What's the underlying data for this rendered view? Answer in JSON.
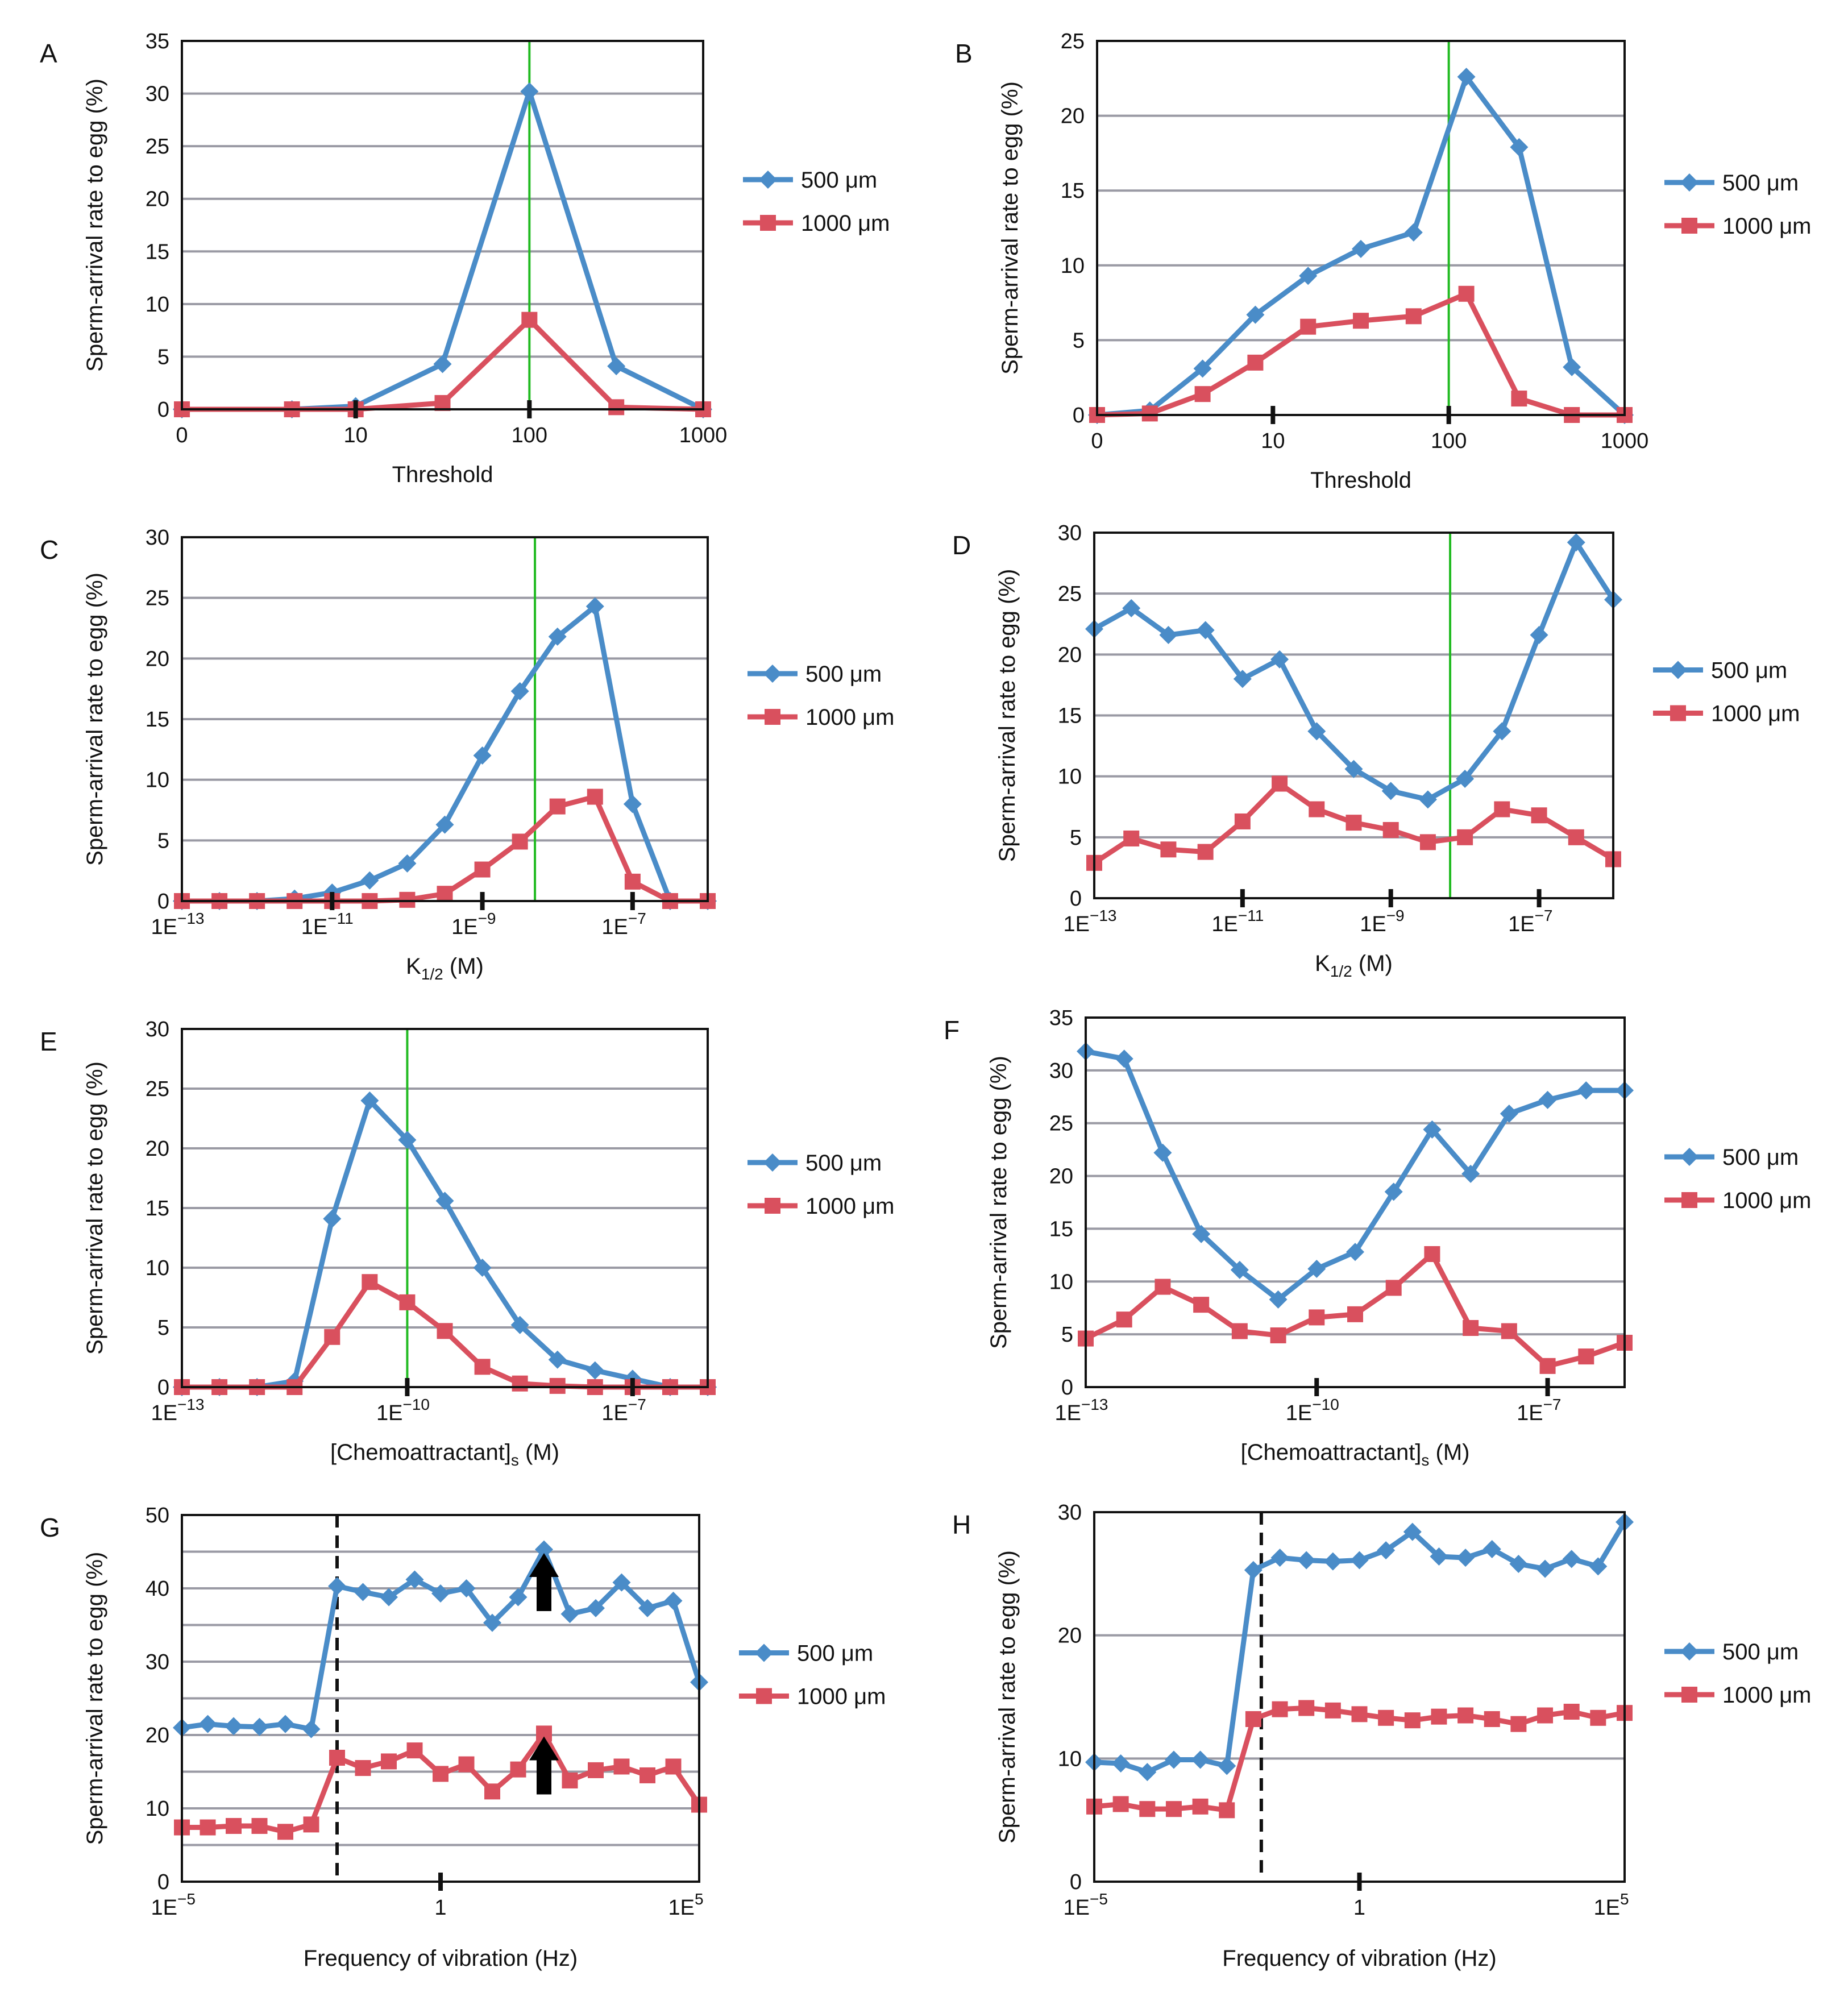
{
  "figure": {
    "ylabel": "Sperm-arrival rate to egg (%)"
  },
  "series_style": [
    {
      "name": "500 μm",
      "color": "#4A8CC8",
      "marker": "diamond"
    },
    {
      "name": "1000 μm",
      "color": "#D9505E",
      "marker": "square"
    }
  ],
  "chart_data": [
    {
      "panel": "A",
      "type": "line",
      "xlabel": "Threshold",
      "ylabel": "Sperm-arrival rate to egg (%)",
      "ylim": [
        0,
        35
      ],
      "yticks": [
        0,
        5,
        10,
        15,
        20,
        25,
        30,
        35
      ],
      "grid": true,
      "xrange": [
        0,
        9
      ],
      "xticks": [
        {
          "x": 0,
          "label": "0"
        },
        {
          "x": 3,
          "label": "10"
        },
        {
          "x": 6,
          "label": "100"
        },
        {
          "x": 9,
          "label": "1000"
        }
      ],
      "xtick_marks": [
        3,
        6
      ],
      "vline": {
        "x": 6,
        "color": "#22BB22",
        "style": "solid"
      },
      "x": [
        0,
        1.9,
        3,
        4.5,
        6,
        7.5,
        9
      ],
      "series": [
        {
          "name": "500 μm",
          "values": [
            0,
            0,
            0.3,
            4.3,
            30.2,
            4.1,
            0
          ]
        },
        {
          "name": "1000 μm",
          "values": [
            0,
            0,
            0,
            0.6,
            8.5,
            0.2,
            0
          ]
        }
      ],
      "legend": "right"
    },
    {
      "panel": "B",
      "type": "line",
      "xlabel": "Threshold",
      "ylabel": "Sperm-arrival rate to egg (%)",
      "ylim": [
        0,
        25
      ],
      "yticks": [
        0,
        5,
        10,
        15,
        20,
        25
      ],
      "grid": true,
      "xrange": [
        0,
        15
      ],
      "xticks": [
        {
          "x": 0,
          "label": "0"
        },
        {
          "x": 5,
          "label": "10"
        },
        {
          "x": 10,
          "label": "100"
        },
        {
          "x": 15,
          "label": "1000"
        }
      ],
      "xtick_marks": [
        5,
        10
      ],
      "vline": {
        "x": 10,
        "color": "#22BB22",
        "style": "solid"
      },
      "x": [
        0,
        1.5,
        3,
        4.5,
        6,
        7.5,
        9,
        10.5,
        12,
        13.5,
        15
      ],
      "series": [
        {
          "name": "500 μm",
          "values": [
            0,
            0.3,
            3.1,
            6.7,
            9.3,
            11.1,
            12.2,
            22.6,
            17.9,
            3.2,
            0
          ]
        },
        {
          "name": "1000 μm",
          "values": [
            0,
            0.1,
            1.4,
            3.5,
            5.9,
            6.3,
            6.6,
            8.1,
            1.1,
            0,
            0
          ]
        }
      ],
      "legend": "right"
    },
    {
      "panel": "C",
      "type": "line",
      "xlabel": "K1/2 (M)",
      "xlabel_main": "K",
      "xlabel_sub": "1/2",
      "xlabel_rest": " (M)",
      "ylabel": "Sperm-arrival rate to egg (%)",
      "ylim": [
        0,
        30
      ],
      "yticks": [
        0,
        5,
        10,
        15,
        20,
        25,
        30
      ],
      "grid": true,
      "xrange": [
        0,
        14
      ],
      "xticks": [
        {
          "x": 0,
          "label": "1E-13"
        },
        {
          "x": 4,
          "label": "1E-11"
        },
        {
          "x": 8,
          "label": "1E-9"
        },
        {
          "x": 12,
          "label": "1E-7"
        }
      ],
      "xtick_marks": [
        4,
        8,
        12
      ],
      "vline": {
        "x": 9.4,
        "color": "#22BB22",
        "style": "solid"
      },
      "x": [
        0,
        1,
        2,
        3,
        4,
        5,
        6,
        7,
        8,
        9,
        10,
        11,
        12,
        13,
        14
      ],
      "series": [
        {
          "name": "500 μm",
          "values": [
            0,
            0,
            0,
            0.2,
            0.7,
            1.7,
            3.1,
            6.3,
            12.0,
            17.3,
            21.8,
            24.3,
            8.0,
            0,
            0
          ]
        },
        {
          "name": "1000 μm",
          "values": [
            0,
            0,
            0,
            0,
            0,
            0,
            0.1,
            0.6,
            2.6,
            4.9,
            7.8,
            8.6,
            1.6,
            0,
            0
          ]
        }
      ],
      "legend": "right"
    },
    {
      "panel": "D",
      "type": "line",
      "xlabel": "K1/2 (M)",
      "xlabel_main": "K",
      "xlabel_sub": "1/2",
      "xlabel_rest": " (M)",
      "ylabel": "Sperm-arrival rate to egg (%)",
      "ylim": [
        0,
        30
      ],
      "yticks": [
        0,
        5,
        10,
        15,
        20,
        25,
        30
      ],
      "grid": true,
      "xrange": [
        0,
        14
      ],
      "xticks": [
        {
          "x": 0,
          "label": "1E-13"
        },
        {
          "x": 4,
          "label": "1E-11"
        },
        {
          "x": 8,
          "label": "1E-9"
        },
        {
          "x": 12,
          "label": "1E-7"
        }
      ],
      "xtick_marks": [
        4,
        8,
        12
      ],
      "vline": {
        "x": 9.6,
        "color": "#22BB22",
        "style": "solid"
      },
      "x": [
        0,
        1,
        2,
        3,
        4,
        5,
        6,
        7,
        8,
        9,
        10,
        11,
        12,
        13,
        14
      ],
      "series": [
        {
          "name": "500 μm",
          "values": [
            22.1,
            23.8,
            21.6,
            22.0,
            18.0,
            19.6,
            13.7,
            10.6,
            8.8,
            8.1,
            9.8,
            13.7,
            21.6,
            29.2,
            24.5
          ]
        },
        {
          "name": "1000 μm",
          "values": [
            2.9,
            4.9,
            4.0,
            3.8,
            6.3,
            9.4,
            7.3,
            6.2,
            5.6,
            4.6,
            5.0,
            7.3,
            6.8,
            5.0,
            3.2
          ]
        }
      ],
      "legend": "right"
    },
    {
      "panel": "E",
      "type": "line",
      "xlabel": "[Chemoattractant]s (M)",
      "xlabel_main": "[Chemoattractant]",
      "xlabel_sub": "s",
      "xlabel_rest": " (M)",
      "ylabel": "Sperm-arrival rate to egg (%)",
      "ylim": [
        0,
        30
      ],
      "yticks": [
        0,
        5,
        10,
        15,
        20,
        25,
        30
      ],
      "grid": true,
      "xrange": [
        0,
        14
      ],
      "xticks": [
        {
          "x": 0,
          "label": "1E-13"
        },
        {
          "x": 6,
          "label": "1E-10"
        },
        {
          "x": 12,
          "label": "1E-7"
        }
      ],
      "xtick_marks": [
        6,
        12
      ],
      "vline": {
        "x": 6,
        "color": "#22BB22",
        "style": "solid"
      },
      "x": [
        0,
        1,
        2,
        3,
        4,
        5,
        6,
        7,
        8,
        9,
        10,
        11,
        12,
        13,
        14
      ],
      "series": [
        {
          "name": "500 μm",
          "values": [
            0,
            0,
            0,
            0.5,
            14.1,
            24.0,
            20.7,
            15.6,
            10.0,
            5.2,
            2.3,
            1.4,
            0.7,
            0,
            0
          ]
        },
        {
          "name": "1000 μm",
          "values": [
            0,
            0,
            0,
            0,
            4.2,
            8.8,
            7.1,
            4.7,
            1.7,
            0.3,
            0.1,
            0,
            0,
            0,
            0
          ]
        }
      ],
      "legend": "right"
    },
    {
      "panel": "F",
      "type": "line",
      "xlabel": "[Chemoattractant]s (M)",
      "xlabel_main": "[Chemoattractant]",
      "xlabel_sub": "s",
      "xlabel_rest": " (M)",
      "ylabel": "Sperm-arrival rate to egg (%)",
      "ylim": [
        0,
        35
      ],
      "yticks": [
        0,
        5,
        10,
        15,
        20,
        25,
        30,
        35
      ],
      "grid": true,
      "xrange": [
        0,
        14
      ],
      "xticks": [
        {
          "x": 0,
          "label": "1E-13"
        },
        {
          "x": 6,
          "label": "1E-10"
        },
        {
          "x": 12,
          "label": "1E-7"
        }
      ],
      "xtick_marks": [
        6,
        12
      ],
      "vline": null,
      "x": [
        0,
        1,
        2,
        3,
        4,
        5,
        6,
        7,
        8,
        9,
        10,
        11,
        12,
        13,
        14
      ],
      "series": [
        {
          "name": "500 μm",
          "values": [
            31.8,
            31.1,
            22.2,
            14.5,
            11.1,
            8.3,
            11.2,
            12.8,
            18.5,
            24.4,
            20.2,
            25.9,
            27.2,
            28.1,
            28.1
          ]
        },
        {
          "name": "1000 μm",
          "values": [
            4.6,
            6.4,
            9.5,
            7.8,
            5.3,
            4.9,
            6.6,
            6.9,
            9.4,
            12.6,
            5.6,
            5.3,
            2.0,
            2.9,
            4.2
          ]
        }
      ],
      "legend": "right"
    },
    {
      "panel": "G",
      "type": "line",
      "xlabel": "Frequency of vibration (Hz)",
      "ylabel": "Sperm-arrival rate to egg (%)",
      "ylim": [
        0,
        50
      ],
      "yticks": [
        0,
        10,
        20,
        30,
        40,
        50
      ],
      "minor_yticks": [
        5,
        15,
        25,
        35,
        45
      ],
      "grid": true,
      "xrange": [
        0,
        20
      ],
      "xticks": [
        {
          "x": 0,
          "label": "1E-5"
        },
        {
          "x": 10,
          "label": "1"
        },
        {
          "x": 20,
          "label": "1E5"
        }
      ],
      "xtick_marks": [
        10
      ],
      "vline": {
        "x": 6,
        "color": "#111111",
        "style": "dashed"
      },
      "arrows": [
        {
          "x": 14,
          "y": 40
        },
        {
          "x": 14,
          "y": 15
        }
      ],
      "x": [
        0,
        1,
        2,
        3,
        4,
        5,
        6,
        7,
        8,
        9,
        10,
        11,
        12,
        13,
        14,
        15,
        16,
        17,
        18,
        19,
        20
      ],
      "series": [
        {
          "name": "500 μm",
          "values": [
            21.0,
            21.5,
            21.2,
            21.1,
            21.5,
            20.8,
            40.3,
            39.5,
            38.8,
            41.2,
            39.3,
            40.0,
            35.3,
            38.8,
            45.3,
            36.5,
            37.3,
            40.8,
            37.3,
            38.3,
            27.2
          ]
        },
        {
          "name": "1000 μm",
          "values": [
            7.4,
            7.4,
            7.6,
            7.6,
            6.8,
            7.8,
            16.9,
            15.5,
            16.4,
            17.9,
            14.7,
            16.0,
            12.3,
            15.3,
            20.2,
            13.8,
            15.2,
            15.7,
            14.5,
            15.7,
            10.5
          ]
        }
      ],
      "legend": "right"
    },
    {
      "panel": "H",
      "type": "line",
      "xlabel": "Frequency of vibration (Hz)",
      "ylabel": "Sperm-arrival rate to egg (%)",
      "ylim": [
        0,
        30
      ],
      "yticks": [
        0,
        10,
        20,
        30
      ],
      "minor_yticks": [],
      "grid": true,
      "xrange": [
        0,
        20
      ],
      "xticks": [
        {
          "x": 0,
          "label": "1E-5"
        },
        {
          "x": 10,
          "label": "1"
        },
        {
          "x": 20,
          "label": "1E5"
        }
      ],
      "xtick_marks": [
        10
      ],
      "vline": {
        "x": 6.3,
        "color": "#111111",
        "style": "dashed"
      },
      "x": [
        0,
        1,
        2,
        3,
        4,
        5,
        6,
        7,
        8,
        9,
        10,
        11,
        12,
        13,
        14,
        15,
        16,
        17,
        18,
        19,
        20
      ],
      "series": [
        {
          "name": "500 μm",
          "values": [
            9.7,
            9.6,
            8.9,
            9.9,
            9.9,
            9.4,
            25.3,
            26.3,
            26.1,
            26.0,
            26.1,
            26.9,
            28.4,
            26.4,
            26.3,
            27.0,
            25.8,
            25.4,
            26.2,
            25.6,
            29.2
          ]
        },
        {
          "name": "1000 μm",
          "values": [
            6.1,
            6.3,
            5.9,
            5.9,
            6.1,
            5.8,
            13.2,
            14.0,
            14.1,
            13.9,
            13.6,
            13.3,
            13.1,
            13.4,
            13.5,
            13.2,
            12.8,
            13.5,
            13.8,
            13.3,
            13.7
          ]
        }
      ],
      "legend": "right"
    }
  ]
}
